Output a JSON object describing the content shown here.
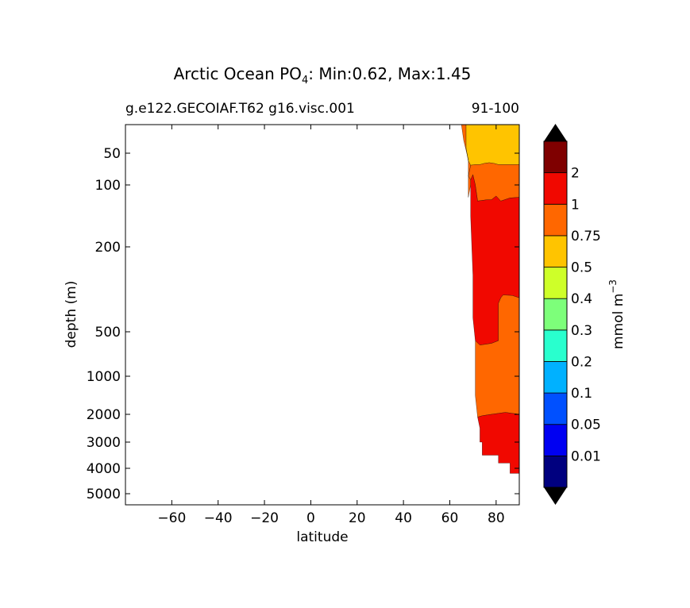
{
  "chart_data": {
    "type": "contour",
    "title_main": "Arctic Ocean PO",
    "title_sub": "4",
    "title_rest": ": Min:0.62, Max:1.45",
    "left_label": "g.e122.GECOIAF.T62 g16.visc.001",
    "right_label": "91-100",
    "xlabel": "latitude",
    "ylabel": "depth (m)",
    "xlim": [
      -80,
      90
    ],
    "x_ticks": [
      {
        "value": -60,
        "label": "−60"
      },
      {
        "value": -40,
        "label": "−40"
      },
      {
        "value": -20,
        "label": "−20"
      },
      {
        "value": 0,
        "label": "0"
      },
      {
        "value": 20,
        "label": "20"
      },
      {
        "value": 40,
        "label": "40"
      },
      {
        "value": 60,
        "label": "60"
      },
      {
        "value": 80,
        "label": "80"
      }
    ],
    "y_ticks": [
      {
        "value": 50,
        "label": "50"
      },
      {
        "value": 100,
        "label": "100"
      },
      {
        "value": 200,
        "label": "200"
      },
      {
        "value": 500,
        "label": "500"
      },
      {
        "value": 1000,
        "label": "1000"
      },
      {
        "value": 2000,
        "label": "2000"
      },
      {
        "value": 3000,
        "label": "3000"
      },
      {
        "value": 4000,
        "label": "4000"
      },
      {
        "value": 5000,
        "label": "5000"
      }
    ],
    "colorbar": {
      "label_main": "mmol m",
      "label_exp": "−3",
      "levels": [
        "0.01",
        "0.05",
        "0.1",
        "0.2",
        "0.3",
        "0.4",
        "0.5",
        "0.75",
        "1",
        "2"
      ],
      "colors": [
        "#00007f",
        "#0000f2",
        "#0050ff",
        "#00b1ff",
        "#29ffce",
        "#7dff7a",
        "#ceff29",
        "#ffc400",
        "#ff6700",
        "#f10800",
        "#7f0000"
      ],
      "under_color": "#000000",
      "over_color": "#000000"
    },
    "regions": [
      {
        "name": "band-0.5-0.75",
        "color": "#ffc400",
        "points": [
          [
            67,
            16
          ],
          [
            90,
            16
          ],
          [
            90,
            68
          ],
          [
            84,
            68
          ],
          [
            81,
            68
          ],
          [
            79,
            66
          ],
          [
            77,
            65
          ],
          [
            75,
            66
          ],
          [
            73,
            68
          ],
          [
            71,
            68
          ],
          [
            69,
            69
          ],
          [
            68,
            62
          ],
          [
            67,
            44
          ]
        ]
      },
      {
        "name": "band-0.75-1-upper",
        "color": "#ff6700",
        "points": [
          [
            69,
            69
          ],
          [
            71,
            68
          ],
          [
            73,
            68
          ],
          [
            75,
            66
          ],
          [
            77,
            65
          ],
          [
            79,
            66
          ],
          [
            81,
            68
          ],
          [
            84,
            68
          ],
          [
            90,
            68
          ],
          [
            90,
            120
          ],
          [
            86,
            121
          ],
          [
            82,
            126
          ],
          [
            80,
            118
          ],
          [
            78,
            124
          ],
          [
            76,
            124
          ],
          [
            74,
            125
          ],
          [
            72,
            126
          ],
          [
            71,
            100
          ],
          [
            70,
            84
          ],
          [
            69,
            92
          ],
          [
            68,
            86
          ]
        ]
      },
      {
        "name": "band-1-2",
        "color": "#f10800",
        "points": [
          [
            69,
            92
          ],
          [
            70,
            84
          ],
          [
            71,
            100
          ],
          [
            72,
            126
          ],
          [
            74,
            125
          ],
          [
            76,
            124
          ],
          [
            78,
            124
          ],
          [
            80,
            118
          ],
          [
            82,
            126
          ],
          [
            86,
            121
          ],
          [
            90,
            120
          ],
          [
            90,
            380
          ],
          [
            87,
            372
          ],
          [
            83,
            370
          ],
          [
            82,
            380
          ],
          [
            81,
            400
          ],
          [
            81,
            600
          ],
          [
            78,
            630
          ],
          [
            73,
            650
          ],
          [
            71,
            600
          ],
          [
            70,
            450
          ],
          [
            70,
            300
          ],
          [
            69,
            150
          ]
        ]
      },
      {
        "name": "band-0.75-1-lower",
        "color": "#ff6700",
        "points": [
          [
            71,
            600
          ],
          [
            73,
            650
          ],
          [
            78,
            630
          ],
          [
            81,
            600
          ],
          [
            81,
            400
          ],
          [
            82,
            380
          ],
          [
            83,
            370
          ],
          [
            87,
            372
          ],
          [
            90,
            380
          ],
          [
            90,
            2000
          ],
          [
            84,
            1950
          ],
          [
            78,
            2000
          ],
          [
            74,
            2050
          ],
          [
            72,
            2100
          ],
          [
            71,
            1500
          ]
        ]
      },
      {
        "name": "band-1-2-deep",
        "color": "#f10800",
        "points": [
          [
            72,
            2100
          ],
          [
            74,
            2050
          ],
          [
            78,
            2000
          ],
          [
            84,
            1950
          ],
          [
            90,
            2000
          ],
          [
            90,
            4200
          ],
          [
            86,
            4200
          ],
          [
            86,
            3800
          ],
          [
            81,
            3800
          ],
          [
            81,
            3500
          ],
          [
            74,
            3500
          ],
          [
            74,
            3000
          ],
          [
            73,
            3000
          ],
          [
            73,
            2500
          ]
        ]
      },
      {
        "name": "band-0.75-1-surface",
        "color": "#ff6700",
        "points": [
          [
            65,
            16
          ],
          [
            67,
            16
          ],
          [
            67,
            44
          ],
          [
            68,
            62
          ],
          [
            69,
            69
          ],
          [
            68,
            86
          ],
          [
            69,
            92
          ],
          [
            69,
            100
          ],
          [
            68,
            120
          ],
          [
            68,
            60
          ],
          [
            66,
            35
          ]
        ]
      }
    ]
  }
}
